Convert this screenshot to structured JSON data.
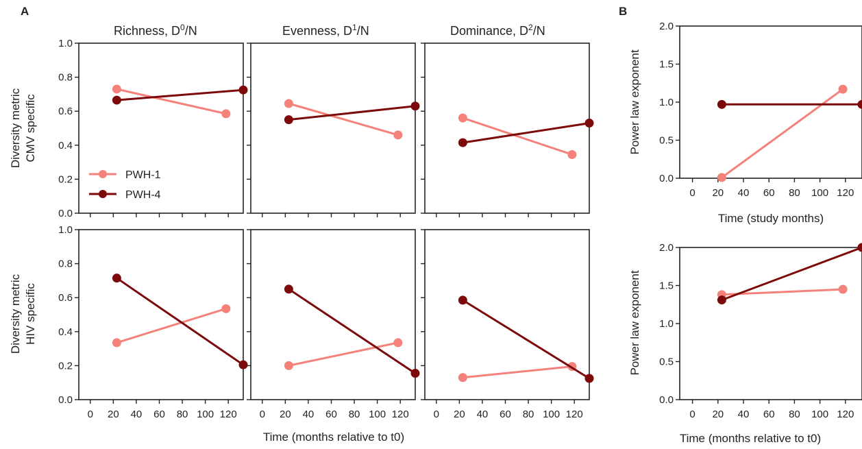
{
  "panel_letters": {
    "a": "A",
    "b": "B"
  },
  "legend": [
    {
      "label": "PWH-1",
      "color": "#f4817a"
    },
    {
      "label": "PWH-4",
      "color": "#7d0a0a"
    }
  ],
  "texts": {
    "title_richness_pre": "Richness, D",
    "title_richness_sup": "0",
    "title_evenness_pre": "Evenness, D",
    "title_evenness_sup": "1",
    "title_dominance_pre": "Dominance, D",
    "title_dominance_sup": "2",
    "title_suffix": "/N",
    "ylabel_cmv_1": "Diversity metric",
    "ylabel_cmv_2": "CMV specific",
    "ylabel_hiv_1": "Diversity metric",
    "ylabel_hiv_2": "HIV specific",
    "xlabel_a": "Time (months relative to t0)",
    "ylabel_power": "Power law exponent",
    "xlabel_b_top": "Time (study months)",
    "xlabel_b_bottom": "Time (months relative to t0)"
  },
  "axes": {
    "x_ticks": [
      "0",
      "20",
      "40",
      "60",
      "80",
      "100",
      "120"
    ],
    "x_tick_values": [
      0,
      20,
      40,
      60,
      80,
      100,
      120
    ],
    "xlim": [
      -10,
      133
    ],
    "y_ticks_a": [
      "0.0",
      "0.2",
      "0.4",
      "0.6",
      "0.8",
      "1.0"
    ],
    "y_ticks_b": [
      "0.0",
      "0.5",
      "1.0",
      "1.5",
      "2.0"
    ]
  },
  "chart_data": [
    {
      "type": "line",
      "panel": "A-CMV-richness",
      "title": "Richness, D0/N",
      "ylim": [
        0,
        1
      ],
      "series": [
        {
          "name": "PWH-1",
          "x": [
            23,
            118
          ],
          "y": [
            0.73,
            0.585
          ]
        },
        {
          "name": "PWH-4",
          "x": [
            23,
            133
          ],
          "y": [
            0.665,
            0.725
          ]
        }
      ]
    },
    {
      "type": "line",
      "panel": "A-CMV-evenness",
      "title": "Evenness, D1/N",
      "ylim": [
        0,
        1
      ],
      "series": [
        {
          "name": "PWH-1",
          "x": [
            23,
            118
          ],
          "y": [
            0.645,
            0.46
          ]
        },
        {
          "name": "PWH-4",
          "x": [
            23,
            133
          ],
          "y": [
            0.55,
            0.63
          ]
        }
      ]
    },
    {
      "type": "line",
      "panel": "A-CMV-dominance",
      "title": "Dominance, D2/N",
      "ylim": [
        0,
        1
      ],
      "series": [
        {
          "name": "PWH-1",
          "x": [
            23,
            118
          ],
          "y": [
            0.56,
            0.345
          ]
        },
        {
          "name": "PWH-4",
          "x": [
            23,
            133
          ],
          "y": [
            0.415,
            0.53
          ]
        }
      ]
    },
    {
      "type": "line",
      "panel": "A-HIV-richness",
      "ylim": [
        0,
        1
      ],
      "series": [
        {
          "name": "PWH-1",
          "x": [
            23,
            118
          ],
          "y": [
            0.335,
            0.535
          ]
        },
        {
          "name": "PWH-4",
          "x": [
            23,
            133
          ],
          "y": [
            0.715,
            0.205
          ]
        }
      ]
    },
    {
      "type": "line",
      "panel": "A-HIV-evenness",
      "ylim": [
        0,
        1
      ],
      "series": [
        {
          "name": "PWH-1",
          "x": [
            23,
            118
          ],
          "y": [
            0.2,
            0.335
          ]
        },
        {
          "name": "PWH-4",
          "x": [
            23,
            133
          ],
          "y": [
            0.65,
            0.155
          ]
        }
      ]
    },
    {
      "type": "line",
      "panel": "A-HIV-dominance",
      "ylim": [
        0,
        1
      ],
      "series": [
        {
          "name": "PWH-1",
          "x": [
            23,
            118
          ],
          "y": [
            0.13,
            0.195
          ]
        },
        {
          "name": "PWH-4",
          "x": [
            23,
            133
          ],
          "y": [
            0.585,
            0.125
          ]
        }
      ]
    },
    {
      "type": "line",
      "panel": "B-CMV-power",
      "ylabel": "Power law exponent",
      "xlabel": "Time (study months)",
      "ylim": [
        0,
        2
      ],
      "series": [
        {
          "name": "PWH-1",
          "x": [
            23,
            118
          ],
          "y": [
            0.01,
            1.17
          ]
        },
        {
          "name": "PWH-4",
          "x": [
            23,
            133
          ],
          "y": [
            0.97,
            0.97
          ]
        }
      ]
    },
    {
      "type": "line",
      "panel": "B-HIV-power",
      "ylabel": "Power law exponent",
      "xlabel": "Time (months relative to t0)",
      "ylim": [
        0,
        2
      ],
      "series": [
        {
          "name": "PWH-1",
          "x": [
            23,
            118
          ],
          "y": [
            1.38,
            1.45
          ]
        },
        {
          "name": "PWH-4",
          "x": [
            23,
            133
          ],
          "y": [
            1.31,
            2.0
          ]
        }
      ]
    }
  ]
}
